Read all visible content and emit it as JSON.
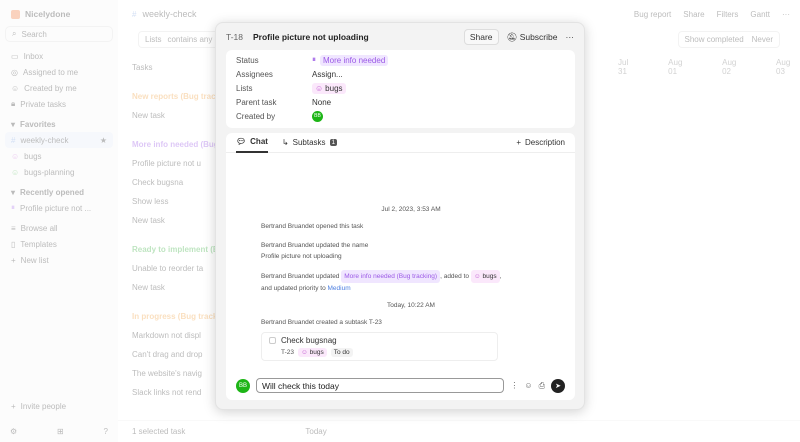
{
  "sidebar": {
    "brand": "Nicelydone",
    "search": "Search",
    "nav": [
      "Inbox",
      "Assigned to me",
      "Created by me",
      "Private tasks"
    ],
    "favorites_label": "Favorites",
    "favorites": [
      "weekly-check",
      "bugs",
      "bugs-planning"
    ],
    "recent_label": "Recently opened",
    "recent": [
      "Profile picture not ..."
    ],
    "more": [
      "Browse all",
      "Templates",
      "New list"
    ],
    "invite": "Invite people"
  },
  "main": {
    "title": "weekly-check",
    "actions": [
      "Bug report",
      "Share",
      "Filters",
      "Gantt"
    ],
    "filter": [
      "Lists",
      "contains any o"
    ],
    "show_completed": "Show completed",
    "never": "Never",
    "tasks_label": "Tasks",
    "rows": [
      {
        "t": "New reports (Bug track",
        "g": true,
        "c": "#f0a040"
      },
      {
        "t": "New task"
      },
      {
        "t": "More info needed (Bug",
        "g": true,
        "c": "#9b59e6"
      },
      {
        "t": "Profile picture not u"
      },
      {
        "t": "Check bugsna"
      },
      {
        "t": "Show less"
      },
      {
        "t": "New task"
      },
      {
        "t": "Ready to implement (B",
        "g": true,
        "c": "#3cb043"
      },
      {
        "t": "Unable to reorder ta"
      },
      {
        "t": "New task"
      },
      {
        "t": "In progress (Bug track",
        "g": true,
        "c": "#f0a040"
      },
      {
        "t": "Markdown not displ"
      },
      {
        "t": "Can't drag and drop"
      },
      {
        "t": "The website's navig"
      },
      {
        "t": "Slack links not rend"
      }
    ],
    "dates": [
      "Jul 31",
      "Aug 01",
      "Aug 02",
      "Aug 03"
    ],
    "selected": "1 selected task",
    "today": "Today"
  },
  "modal": {
    "task_id": "T-18",
    "title": "Profile picture not uploading",
    "share": "Share",
    "subscribe": "Subscribe",
    "more": "···",
    "props": {
      "status_label": "Status",
      "status": "More info needed",
      "assignees_label": "Assignees",
      "assignees": "Assign...",
      "lists_label": "Lists",
      "list": "bugs",
      "parent_label": "Parent task",
      "parent": "None",
      "created_label": "Created by",
      "creator_initials": "BB"
    },
    "tabs": {
      "chat": "Chat",
      "subtasks": "Subtasks",
      "subtasks_count": "1",
      "description": "Description"
    },
    "feed": {
      "ts1": "Jul 2, 2023, 3:53 AM",
      "e1": "Bertrand Bruandet opened this task",
      "e2": "Bertrand Bruandet updated the name",
      "e2b": "Profile picture not uploading",
      "e3a": "Bertrand Bruandet updated",
      "e3tag": "More info needed (Bug tracking)",
      "e3b": ", added to",
      "e3list": "bugs",
      "e3c": ",",
      "e3d": "and updated priority to",
      "e3prio": "Medium",
      "ts2": "Today, 10:22 AM",
      "e4": "Bertrand Bruandet created a subtask T-23",
      "subtask": {
        "name": "Check bugsnag",
        "id": "T-23",
        "list": "bugs",
        "status": "To do"
      }
    },
    "composer": {
      "initials": "BB",
      "value": "Will check this today"
    }
  },
  "colors": {
    "accent_purple": "#9b59e6",
    "avatar_green": "#1db516",
    "link_blue": "#4d7fe0"
  }
}
